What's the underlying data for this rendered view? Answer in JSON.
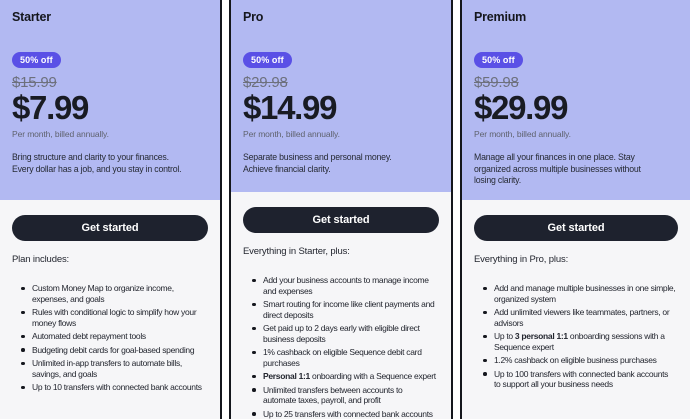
{
  "colors": {
    "header_bg": "#b2b9f2",
    "badge_bg": "#5a50e6",
    "badge_text": "#ffffff",
    "button_bg": "#1e222e",
    "button_text": "#ffffff",
    "body_bg": "#f6f6f8",
    "card_border": "#14161c"
  },
  "plans": [
    {
      "id": "starter",
      "title": "Starter",
      "badge": "50% off",
      "original_price": "$15.99",
      "price": "$7.99",
      "billing_note": "Per month, billed annually.",
      "description": "Bring structure and clarity to your finances.\nEvery dollar has a job, and you stay in control.",
      "cta_label": "Get started",
      "features_heading": "Plan includes:",
      "features": [
        [
          {
            "t": "Custom Money Map to organize income, expenses, and goals"
          }
        ],
        [
          {
            "t": "Rules with conditional logic to simplify how your money flows"
          }
        ],
        [
          {
            "t": "Automated debt repayment tools"
          }
        ],
        [
          {
            "t": "Budgeting debit cards for goal-based spending"
          }
        ],
        [
          {
            "t": "Unlimited in-app transfers to automate bills, savings, and goals"
          }
        ],
        [
          {
            "t": "Up to 10 transfers with connected bank accounts"
          }
        ]
      ]
    },
    {
      "id": "pro",
      "title": "Pro",
      "badge": "50% off",
      "original_price": "$29.98",
      "price": "$14.99",
      "billing_note": "Per month, billed annually.",
      "description": "Separate business and personal money.\nAchieve financial clarity.",
      "cta_label": "Get started",
      "features_heading": "Everything in Starter, plus:",
      "features": [
        [
          {
            "t": "Add your business accounts to manage income and expenses"
          }
        ],
        [
          {
            "t": "Smart routing for income like client payments and direct deposits"
          }
        ],
        [
          {
            "t": "Get paid up to 2 days early with eligible direct business deposits"
          }
        ],
        [
          {
            "t": "1% cashback on eligible Sequence debit card purchases"
          }
        ],
        [
          {
            "t": "Personal 1:1",
            "b": true
          },
          {
            "t": " onboarding with a Sequence expert"
          }
        ],
        [
          {
            "t": "Unlimited transfers between accounts to automate taxes, payroll, and profit"
          }
        ],
        [
          {
            "t": "Up to 25 transfers with connected bank accounts"
          }
        ]
      ]
    },
    {
      "id": "premium",
      "title": "Premium",
      "badge": "50% off",
      "original_price": "$59.98",
      "price": "$29.99",
      "billing_note": "Per month, billed annually.",
      "description": "Manage all your finances in one place. Stay\norganized across multiple businesses without\nlosing clarity.",
      "cta_label": "Get started",
      "features_heading": "Everything in Pro, plus:",
      "features": [
        [
          {
            "t": "Add and manage multiple businesses in one simple, organized system"
          }
        ],
        [
          {
            "t": "Add unlimited viewers like teammates, partners, or advisors"
          }
        ],
        [
          {
            "t": "Up to "
          },
          {
            "t": "3 personal 1:1",
            "b": true
          },
          {
            "t": " onboarding sessions with a Sequence expert"
          }
        ],
        [
          {
            "t": "1.2% cashback on eligible business purchases"
          }
        ],
        [
          {
            "t": "Up to 100 transfers with connected bank accounts to support all your business needs"
          }
        ]
      ]
    }
  ]
}
